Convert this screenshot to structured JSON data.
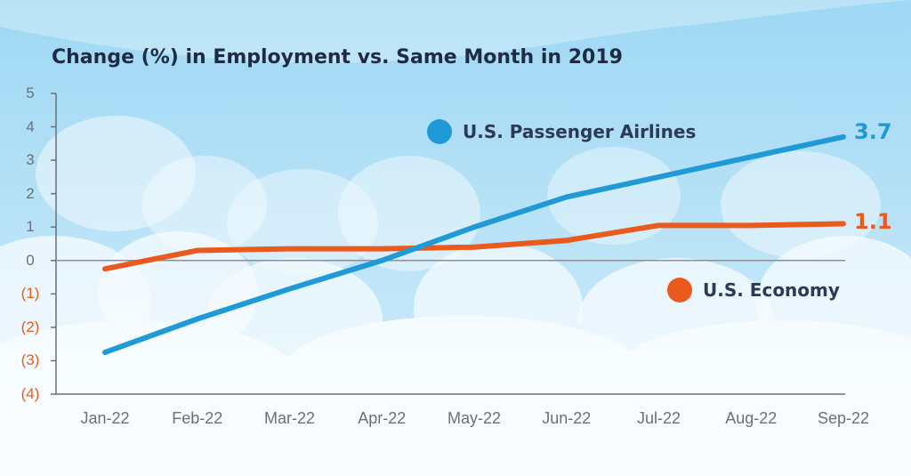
{
  "colors": {
    "sky_top": "#9ed8f4",
    "sky_bottom": "#d6eefa",
    "cloud": "#ffffff",
    "airlines": "#1f9ad6",
    "economy": "#ea5a1e",
    "axis": "#6b6f78",
    "zero_line": "#8a8f96",
    "title": "#1f2a44",
    "legend_text": "#2b3a55",
    "negative_tick": "#ea5a1e",
    "positive_tick": "#6b6f78"
  },
  "chart_data": {
    "type": "line",
    "title": "Change (%) in Employment vs. Same Month in 2019",
    "xlabel": "",
    "ylabel": "",
    "categories": [
      "Jan-22",
      "Feb-22",
      "Mar-22",
      "Apr-22",
      "May-22",
      "Jun-22",
      "Jul-22",
      "Aug-22",
      "Sep-22"
    ],
    "y_tick_labels": [
      "5",
      "4",
      "3",
      "2",
      "1",
      "0",
      "(1)",
      "(2)",
      "(3)",
      "(4)"
    ],
    "y_tick_values": [
      5,
      4,
      3,
      2,
      1,
      0,
      -1,
      -2,
      -3,
      -4
    ],
    "ylim": [
      -4,
      5
    ],
    "grid": false,
    "legend": "inline",
    "series": [
      {
        "name": "U.S. Passenger Airlines",
        "values": [
          -2.75,
          -1.75,
          -0.85,
          0.0,
          1.0,
          1.9,
          2.5,
          3.1,
          3.7
        ],
        "end_label": "3.7"
      },
      {
        "name": "U.S. Economy",
        "values": [
          -0.25,
          0.3,
          0.35,
          0.35,
          0.4,
          0.6,
          1.05,
          1.05,
          1.1
        ],
        "end_label": "1.1"
      }
    ]
  }
}
